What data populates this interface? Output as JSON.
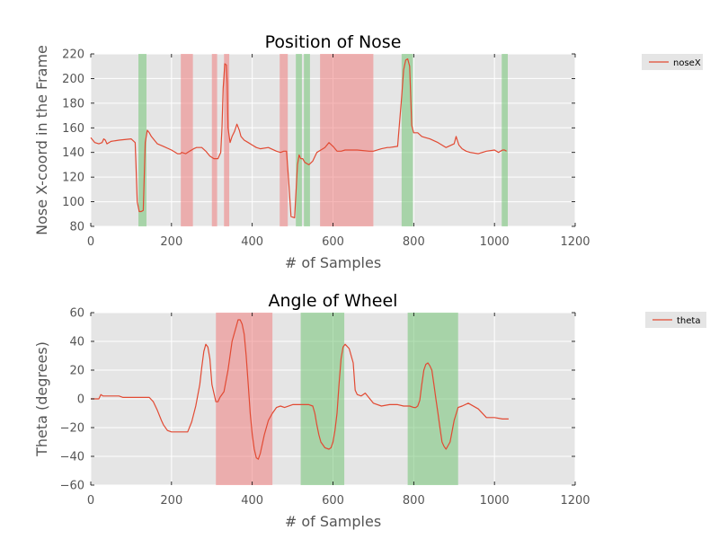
{
  "colors": {
    "panel_bg": "#e5e5e5",
    "grid": "#ffffff",
    "line": "#e24a33",
    "red_band": "#f08080",
    "green_band": "#74c476",
    "tick_text": "#555555"
  },
  "chart_data": [
    {
      "type": "line",
      "title": "Position of Nose",
      "xlabel": "# of Samples",
      "ylabel": "Nose X-coord in the Frame",
      "xlim": [
        0,
        1200
      ],
      "ylim": [
        80,
        220
      ],
      "xticks": [
        "0",
        "200",
        "400",
        "600",
        "800",
        "1000",
        "1200"
      ],
      "yticks": [
        "80",
        "100",
        "120",
        "140",
        "160",
        "180",
        "200",
        "220"
      ],
      "grid": true,
      "legend": {
        "placement": "outside-top-right",
        "entries": [
          "noseX"
        ]
      },
      "series": [
        {
          "name": "noseX",
          "x": [
            0,
            10,
            20,
            28,
            32,
            36,
            40,
            50,
            70,
            100,
            110,
            112,
            115,
            120,
            125,
            130,
            135,
            140,
            145,
            150,
            165,
            180,
            200,
            215,
            222,
            225,
            235,
            245,
            255,
            262,
            275,
            285,
            295,
            305,
            315,
            322,
            325,
            328,
            332,
            336,
            338,
            340,
            345,
            350,
            356,
            362,
            368,
            372,
            380,
            390,
            400,
            410,
            420,
            440,
            460,
            470,
            478,
            485,
            490,
            496,
            505,
            512,
            516,
            520,
            525,
            530,
            540,
            550,
            560,
            570,
            580,
            590,
            600,
            610,
            620,
            630,
            640,
            660,
            690,
            700,
            720,
            735,
            740,
            760,
            770,
            775,
            780,
            785,
            790,
            795,
            800,
            810,
            820,
            830,
            840,
            860,
            880,
            900,
            905,
            908,
            912,
            920,
            930,
            940,
            960,
            980,
            1000,
            1010,
            1015,
            1020,
            1025,
            1030
          ],
          "y": [
            152,
            148,
            147,
            148,
            151,
            150,
            147,
            149,
            150,
            151,
            148,
            130,
            100,
            92,
            92,
            93,
            148,
            158,
            156,
            153,
            147,
            145,
            142,
            139,
            139,
            140,
            139,
            141,
            143,
            144,
            144,
            141,
            137,
            135,
            135,
            140,
            160,
            192,
            212,
            211,
            195,
            160,
            148,
            153,
            157,
            163,
            158,
            153,
            150,
            148,
            146,
            144,
            143,
            144,
            141,
            140,
            141,
            141,
            118,
            88,
            87,
            130,
            138,
            135,
            135,
            132,
            130,
            133,
            140,
            142,
            144,
            148,
            145,
            141,
            141,
            142,
            142,
            142,
            141,
            141,
            143,
            144,
            144,
            145,
            185,
            207,
            215,
            216,
            210,
            162,
            156,
            156,
            153,
            152,
            151,
            148,
            144,
            147,
            153,
            150,
            146,
            143,
            141,
            140,
            139,
            141,
            142,
            140,
            141,
            142,
            142,
            141
          ]
        }
      ],
      "bands": [
        {
          "from": 118,
          "to": 138,
          "color": "green"
        },
        {
          "from": 223,
          "to": 253,
          "color": "red"
        },
        {
          "from": 300,
          "to": 313,
          "color": "red"
        },
        {
          "from": 330,
          "to": 343,
          "color": "red"
        },
        {
          "from": 468,
          "to": 488,
          "color": "red"
        },
        {
          "from": 508,
          "to": 523,
          "color": "green"
        },
        {
          "from": 528,
          "to": 543,
          "color": "green"
        },
        {
          "from": 568,
          "to": 700,
          "color": "red"
        },
        {
          "from": 770,
          "to": 798,
          "color": "green"
        },
        {
          "from": 1018,
          "to": 1033,
          "color": "green"
        }
      ]
    },
    {
      "type": "line",
      "title": "Angle of Wheel",
      "xlabel": "# of Samples",
      "ylabel": "Theta (degrees)",
      "xlim": [
        0,
        1200
      ],
      "ylim": [
        -60,
        60
      ],
      "xticks": [
        "0",
        "200",
        "400",
        "600",
        "800",
        "1000",
        "1200"
      ],
      "yticks": [
        "−60",
        "−40",
        "−20",
        "0",
        "20",
        "40",
        "60"
      ],
      "grid": true,
      "legend": {
        "placement": "outside-top-right",
        "entries": [
          "theta"
        ]
      },
      "series": [
        {
          "name": "theta",
          "x": [
            0,
            20,
            25,
            30,
            40,
            60,
            70,
            80,
            100,
            120,
            140,
            145,
            155,
            165,
            175,
            180,
            190,
            200,
            210,
            220,
            230,
            240,
            250,
            260,
            270,
            275,
            280,
            285,
            290,
            295,
            300,
            305,
            310,
            315,
            320,
            330,
            340,
            350,
            360,
            365,
            370,
            375,
            380,
            385,
            390,
            395,
            400,
            405,
            410,
            415,
            420,
            430,
            440,
            450,
            460,
            470,
            480,
            500,
            520,
            540,
            550,
            555,
            560,
            565,
            570,
            580,
            590,
            595,
            600,
            605,
            610,
            615,
            620,
            625,
            630,
            640,
            650,
            655,
            660,
            670,
            680,
            700,
            720,
            740,
            760,
            775,
            780,
            790,
            800,
            805,
            810,
            815,
            820,
            825,
            830,
            835,
            840,
            845,
            850,
            855,
            860,
            865,
            870,
            875,
            880,
            890,
            900,
            910,
            920,
            935,
            960,
            980,
            1000,
            1020,
            1035
          ],
          "y": [
            0,
            0,
            3,
            2,
            2,
            2,
            2,
            1,
            1,
            1,
            1,
            1,
            -2,
            -8,
            -15,
            -18,
            -22,
            -23,
            -23,
            -23,
            -23,
            -23,
            -16,
            -5,
            10,
            22,
            33,
            38,
            36,
            28,
            10,
            4,
            -2,
            -2,
            1,
            5,
            20,
            40,
            50,
            55,
            55,
            52,
            45,
            30,
            10,
            -10,
            -25,
            -35,
            -41,
            -42,
            -38,
            -25,
            -15,
            -10,
            -6,
            -5,
            -6,
            -4,
            -4,
            -4,
            -5,
            -10,
            -18,
            -25,
            -30,
            -34,
            -35,
            -34,
            -30,
            -22,
            -10,
            10,
            28,
            36,
            38,
            35,
            25,
            6,
            3,
            2,
            4,
            -3,
            -5,
            -4,
            -4,
            -5,
            -5,
            -5,
            -6,
            -6,
            -5,
            -1,
            10,
            20,
            24,
            25,
            23,
            20,
            10,
            0,
            -10,
            -20,
            -30,
            -33,
            -35,
            -30,
            -15,
            -6,
            -5,
            -3,
            -7,
            -13,
            -13,
            -14,
            -14
          ]
        }
      ],
      "bands": [
        {
          "from": 310,
          "to": 450,
          "color": "red"
        },
        {
          "from": 520,
          "to": 628,
          "color": "green"
        },
        {
          "from": 785,
          "to": 910,
          "color": "green"
        }
      ]
    }
  ]
}
